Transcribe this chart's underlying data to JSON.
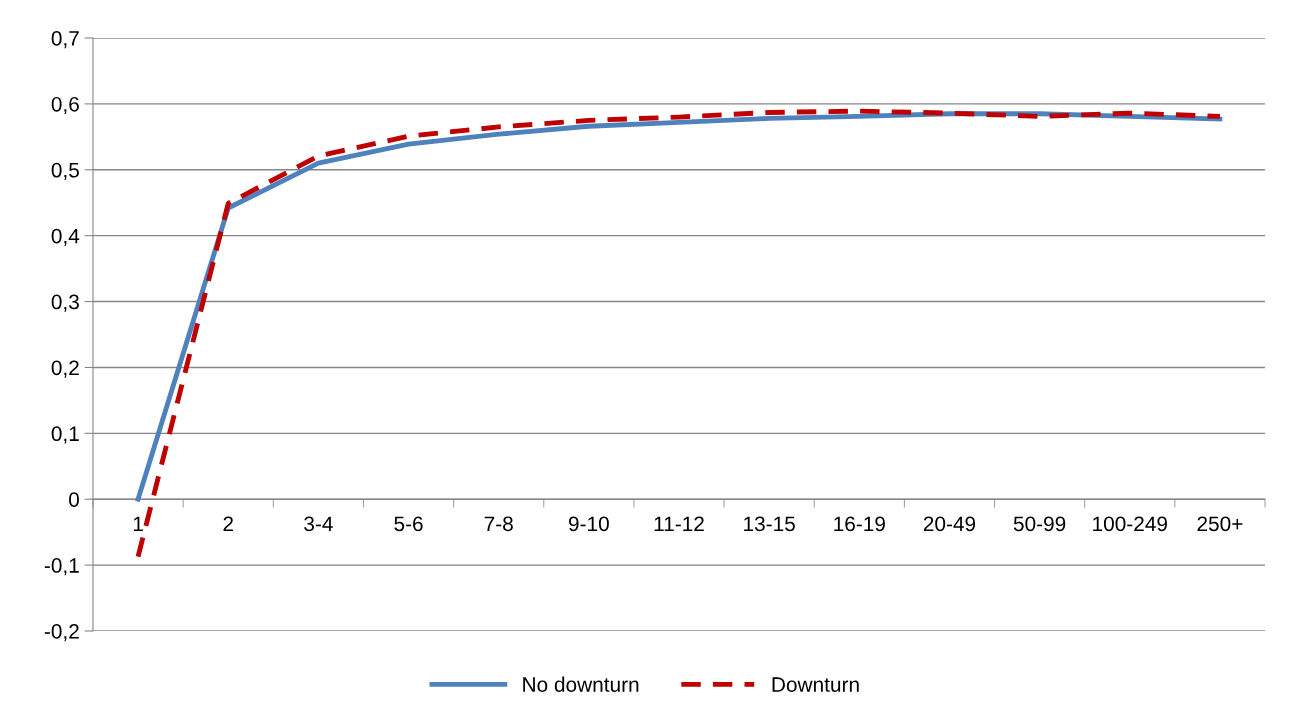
{
  "chart_data": {
    "type": "line",
    "categories": [
      "1",
      "2",
      "3-4",
      "5-6",
      "7-8",
      "9-10",
      "11-12",
      "13-15",
      "16-19",
      "20-49",
      "50-99",
      "100-249",
      "250+"
    ],
    "series": [
      {
        "name": "No downturn",
        "color": "#4f81bd",
        "line_style": "solid",
        "values": [
          0.0,
          0.442,
          0.51,
          0.539,
          0.554,
          0.566,
          0.572,
          0.578,
          0.581,
          0.585,
          0.585,
          0.581,
          0.577
        ]
      },
      {
        "name": "Downturn",
        "color": "#c00000",
        "line_style": "dashed",
        "values": [
          -0.087,
          0.449,
          0.521,
          0.551,
          0.565,
          0.575,
          0.58,
          0.587,
          0.589,
          0.586,
          0.581,
          0.586,
          0.581
        ]
      }
    ],
    "ylim": [
      -0.2,
      0.7
    ],
    "yticks": [
      {
        "value": -0.2,
        "label": "-0,2"
      },
      {
        "value": -0.1,
        "label": "-0,1"
      },
      0,
      {
        "value": 0.1,
        "label": "0,1"
      },
      {
        "value": 0.2,
        "label": "0,2"
      },
      {
        "value": 0.3,
        "label": "0,3"
      },
      {
        "value": 0.4,
        "label": "0,4"
      },
      {
        "value": 0.5,
        "label": "0,5"
      },
      {
        "value": 0.6,
        "label": "0,6"
      },
      {
        "value": 0.7,
        "label": "0,7"
      }
    ],
    "grid": "y",
    "legend": "bottom",
    "marker": "none"
  }
}
